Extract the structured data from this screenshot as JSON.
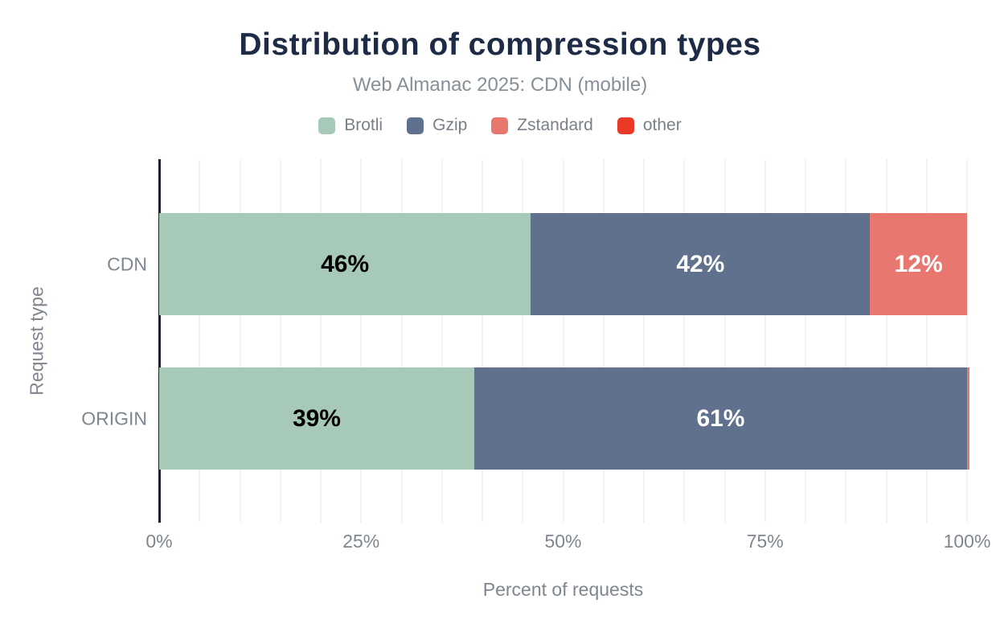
{
  "title": "Distribution of compression types",
  "subtitle": "Web Almanac 2025: CDN (mobile)",
  "colors": {
    "title_navy": "#1e2b47",
    "subtitle_gray": "#878f97",
    "axis_text_gray": "#7f868f",
    "axis_line_navy": "#152238",
    "gridline_gray": "#f3f3f4",
    "brotli_green": "#a7c9b7",
    "gzip_slate": "#5f718c",
    "zstandard_salmon": "#e8786f",
    "other_red": "#e93a28"
  },
  "legend": [
    {
      "label": "Brotli",
      "color": "#a7c9b7"
    },
    {
      "label": "Gzip",
      "color": "#5f718c"
    },
    {
      "label": "Zstandard",
      "color": "#e8786f"
    },
    {
      "label": "other",
      "color": "#e93a28"
    }
  ],
  "chart_data": {
    "type": "bar",
    "orientation": "horizontal",
    "stacked": true,
    "title": "Distribution of compression types",
    "subtitle": "Web Almanac 2025: CDN (mobile)",
    "categories": [
      "CDN",
      "ORIGIN"
    ],
    "series": [
      {
        "name": "Brotli",
        "color": "#a7c9b7",
        "values": [
          46,
          39
        ],
        "labels": [
          "46%",
          "39%"
        ],
        "label_color": "#000000"
      },
      {
        "name": "Gzip",
        "color": "#5f718c",
        "values": [
          42,
          61
        ],
        "labels": [
          "42%",
          "61%"
        ],
        "label_color": "#ffffff"
      },
      {
        "name": "Zstandard",
        "color": "#e8786f",
        "values": [
          12,
          0.3
        ],
        "labels": [
          "12%",
          ""
        ],
        "label_color": "#ffffff"
      },
      {
        "name": "other",
        "color": "#e93a28",
        "values": [
          0,
          0
        ],
        "labels": [
          "",
          ""
        ],
        "label_color": "#ffffff"
      }
    ],
    "xlabel": "Percent of requests",
    "ylabel": "Request type",
    "x_ticks": [
      "0%",
      "25%",
      "50%",
      "75%",
      "100%"
    ],
    "x_tick_values": [
      0,
      25,
      50,
      75,
      100
    ],
    "xlim": [
      0,
      100
    ],
    "grid_interval_percent": 5,
    "grid": true,
    "legend_position": "top"
  }
}
